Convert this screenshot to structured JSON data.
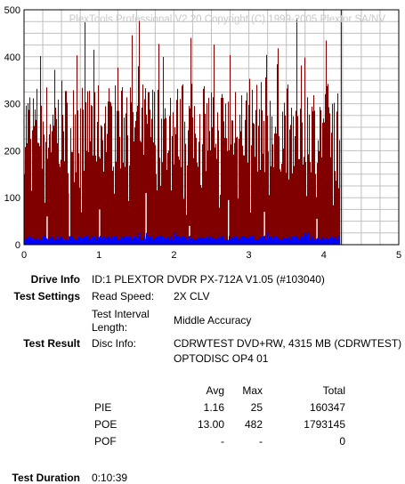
{
  "watermark": "PlexTools Professional V2.20 Copyright (C) 1999-2005 Plextor SA/NV",
  "chart_data": {
    "type": "bar",
    "title": "",
    "xlabel": "",
    "ylabel": "",
    "xlim": [
      0,
      5
    ],
    "ylim": [
      0,
      500
    ],
    "x_ticks": [
      "0",
      "1",
      "2",
      "3",
      "4",
      "5"
    ],
    "y_ticks": [
      "0",
      "100",
      "200",
      "300",
      "400",
      "500"
    ],
    "grid": true,
    "data_end_x": 4.22,
    "series": [
      {
        "color": "#800000",
        "typical_range": [
          150,
          350
        ],
        "peak": 482
      },
      {
        "color": "#0000ff",
        "typical_range": [
          10,
          20
        ],
        "peak": 25
      }
    ]
  },
  "info": {
    "drive_info_label": "Drive Info",
    "drive_info_value": "ID:1 PLEXTOR DVDR PX-712A V1.05 (#103040)",
    "settings_label": "Test Settings",
    "read_speed_label": "Read Speed:",
    "read_speed_value": "2X CLV",
    "interval_label_1": "Test Interval",
    "interval_label_2": "Length:",
    "interval_value": "Middle Accuracy",
    "result_label": "Test Result",
    "disc_info_label": "Disc Info:",
    "disc_info_line1": "CDRWTEST DVD+RW, 4315 MB (CDRWTEST)",
    "disc_info_line2": "OPTODISC OP4 01"
  },
  "stats": {
    "headers": {
      "avg": "Avg",
      "max": "Max",
      "total": "Total"
    },
    "rows": [
      {
        "name": "PIE",
        "avg": "1.16",
        "max": "25",
        "total": "160347"
      },
      {
        "name": "POE",
        "avg": "13.00",
        "max": "482",
        "total": "1793145"
      },
      {
        "name": "POF",
        "avg": "-",
        "max": "-",
        "total": "0"
      }
    ]
  },
  "duration": {
    "label": "Test Duration",
    "value": "0:10:39"
  }
}
